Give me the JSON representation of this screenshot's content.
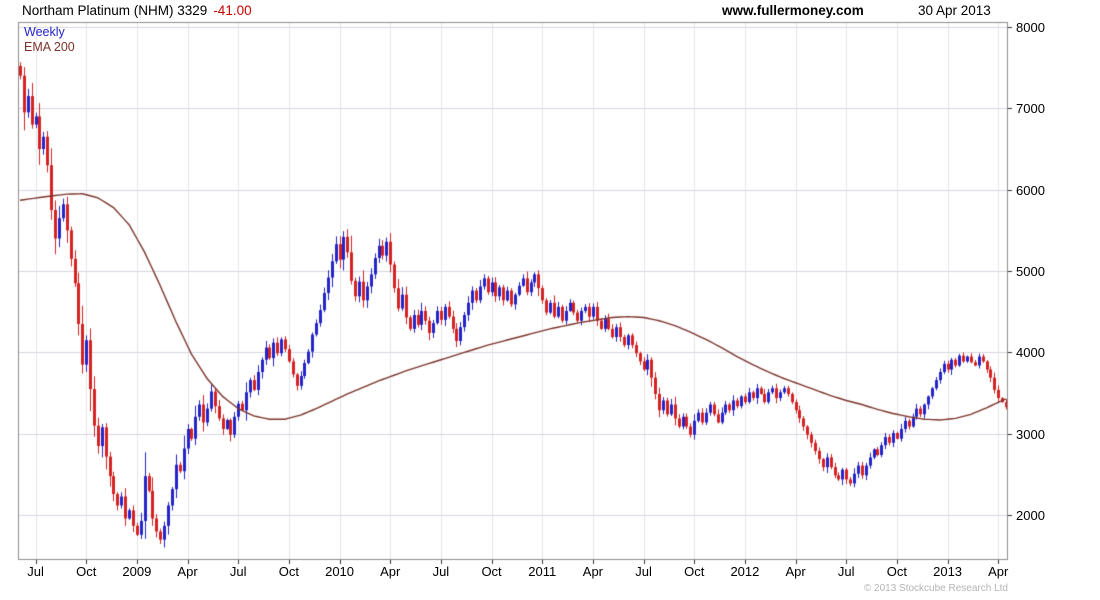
{
  "header": {
    "title": "Northam Platinum (NHM) 3329",
    "change": "-41.00",
    "site": "www.fullermoney.com",
    "date": "30 Apr 2013"
  },
  "legend": {
    "series1": "Weekly",
    "series2": "EMA 200"
  },
  "footer": {
    "copyright": "© 2013 Stockcube Research Ltd"
  },
  "colors": {
    "up": "#2424c8",
    "down": "#d42222",
    "ema": "#7b342c",
    "grid_h": "#d6d6e0",
    "grid_v": "#e3e3ec",
    "border": "#8c8c8c",
    "tick": "#333333",
    "change_text": "#cc0000"
  },
  "chart_data": {
    "type": "candlestick",
    "title": "Northam Platinum (NHM)",
    "timeframe": "Weekly",
    "overlay": "EMA 200",
    "last_price": 3329,
    "change": -41.0,
    "date": "30 Apr 2013",
    "xlabel": "",
    "ylabel": "",
    "grid": true,
    "legend_position": "top-left",
    "ylim": [
      1450,
      8060
    ],
    "yticks": [
      2000,
      3000,
      4000,
      5000,
      6000,
      7000,
      8000
    ],
    "xticks": [
      {
        "label": "Jul",
        "week": 4
      },
      {
        "label": "Oct",
        "week": 17
      },
      {
        "label": "2009",
        "week": 30
      },
      {
        "label": "Apr",
        "week": 43
      },
      {
        "label": "Jul",
        "week": 56
      },
      {
        "label": "Oct",
        "week": 69
      },
      {
        "label": "2010",
        "week": 82
      },
      {
        "label": "Apr",
        "week": 95
      },
      {
        "label": "Jul",
        "week": 108
      },
      {
        "label": "Oct",
        "week": 121
      },
      {
        "label": "2011",
        "week": 134
      },
      {
        "label": "Apr",
        "week": 147
      },
      {
        "label": "Jul",
        "week": 160
      },
      {
        "label": "Oct",
        "week": 173
      },
      {
        "label": "2012",
        "week": 186
      },
      {
        "label": "Apr",
        "week": 199
      },
      {
        "label": "Jul",
        "week": 212
      },
      {
        "label": "Oct",
        "week": 225
      },
      {
        "label": "2013",
        "week": 238
      },
      {
        "label": "Apr",
        "week": 251
      }
    ],
    "first_open": 7520,
    "closes": [
      7400,
      6950,
      7150,
      6800,
      6900,
      6500,
      6650,
      6300,
      5750,
      5400,
      5650,
      5820,
      5500,
      5150,
      4850,
      4350,
      3850,
      4150,
      3550,
      3100,
      2850,
      3080,
      2720,
      2480,
      2260,
      2120,
      2230,
      1960,
      2060,
      1870,
      1760,
      1930,
      2480,
      2300,
      1960,
      1800,
      1700,
      1870,
      2120,
      2320,
      2620,
      2540,
      2820,
      3060,
      2940,
      3210,
      3360,
      3140,
      3310,
      3520,
      3340,
      3190,
      3060,
      3170,
      2990,
      3210,
      3370,
      3290,
      3510,
      3660,
      3540,
      3760,
      3910,
      4060,
      3930,
      4120,
      3990,
      4160,
      4040,
      3890,
      3730,
      3590,
      3710,
      3870,
      4010,
      4220,
      4360,
      4520,
      4730,
      4920,
      5120,
      5330,
      5140,
      5420,
      5230,
      4880,
      4690,
      4870,
      4640,
      4810,
      4960,
      5160,
      5310,
      5190,
      5360,
      5080,
      4790,
      4540,
      4710,
      4430,
      4290,
      4460,
      4340,
      4510,
      4390,
      4240,
      4360,
      4510,
      4400,
      4560,
      4440,
      4290,
      4140,
      4310,
      4460,
      4610,
      4760,
      4640,
      4810,
      4910,
      4740,
      4860,
      4690,
      4800,
      4640,
      4760,
      4590,
      4710,
      4820,
      4910,
      4740,
      4860,
      4960,
      4790,
      4640,
      4490,
      4610,
      4440,
      4560,
      4390,
      4510,
      4610,
      4490,
      4390,
      4510,
      4560,
      4440,
      4560,
      4390,
      4290,
      4410,
      4290,
      4190,
      4310,
      4190,
      4090,
      4210,
      4090,
      3990,
      3890,
      3790,
      3910,
      3690,
      3490,
      3290,
      3410,
      3240,
      3360,
      3190,
      3090,
      3210,
      3090,
      2990,
      3160,
      3260,
      3140,
      3260,
      3360,
      3240,
      3140,
      3260,
      3360,
      3290,
      3410,
      3340,
      3460,
      3390,
      3510,
      3440,
      3560,
      3490,
      3390,
      3510,
      3560,
      3440,
      3510,
      3560,
      3490,
      3390,
      3290,
      3190,
      3090,
      2990,
      2890,
      2790,
      2690,
      2590,
      2710,
      2590,
      2490,
      2440,
      2560,
      2440,
      2390,
      2510,
      2610,
      2490,
      2610,
      2710,
      2810,
      2740,
      2860,
      2960,
      2890,
      3010,
      2940,
      3060,
      3160,
      3090,
      3210,
      3310,
      3240,
      3360,
      3460,
      3560,
      3660,
      3760,
      3860,
      3790,
      3910,
      3840,
      3960,
      3890,
      3950,
      3880,
      3840,
      3950,
      3890,
      3790,
      3690,
      3540,
      3440,
      3390,
      3329
    ],
    "ema_anchors": [
      [
        0,
        5870
      ],
      [
        6,
        5910
      ],
      [
        12,
        5945
      ],
      [
        16,
        5950
      ],
      [
        20,
        5900
      ],
      [
        24,
        5780
      ],
      [
        28,
        5570
      ],
      [
        32,
        5230
      ],
      [
        36,
        4820
      ],
      [
        40,
        4380
      ],
      [
        44,
        3980
      ],
      [
        48,
        3680
      ],
      [
        52,
        3460
      ],
      [
        56,
        3310
      ],
      [
        60,
        3220
      ],
      [
        64,
        3180
      ],
      [
        68,
        3180
      ],
      [
        72,
        3230
      ],
      [
        76,
        3310
      ],
      [
        80,
        3400
      ],
      [
        84,
        3490
      ],
      [
        88,
        3570
      ],
      [
        92,
        3650
      ],
      [
        96,
        3720
      ],
      [
        100,
        3790
      ],
      [
        104,
        3850
      ],
      [
        108,
        3910
      ],
      [
        112,
        3970
      ],
      [
        116,
        4030
      ],
      [
        120,
        4090
      ],
      [
        124,
        4140
      ],
      [
        128,
        4190
      ],
      [
        132,
        4240
      ],
      [
        136,
        4290
      ],
      [
        140,
        4330
      ],
      [
        144,
        4370
      ],
      [
        148,
        4400
      ],
      [
        152,
        4430
      ],
      [
        156,
        4440
      ],
      [
        160,
        4430
      ],
      [
        164,
        4390
      ],
      [
        168,
        4330
      ],
      [
        172,
        4250
      ],
      [
        176,
        4160
      ],
      [
        180,
        4060
      ],
      [
        184,
        3950
      ],
      [
        188,
        3850
      ],
      [
        192,
        3760
      ],
      [
        196,
        3680
      ],
      [
        200,
        3610
      ],
      [
        204,
        3540
      ],
      [
        208,
        3470
      ],
      [
        212,
        3410
      ],
      [
        216,
        3360
      ],
      [
        220,
        3300
      ],
      [
        224,
        3250
      ],
      [
        228,
        3210
      ],
      [
        232,
        3180
      ],
      [
        236,
        3170
      ],
      [
        240,
        3190
      ],
      [
        244,
        3240
      ],
      [
        248,
        3320
      ],
      [
        253,
        3430
      ]
    ]
  }
}
